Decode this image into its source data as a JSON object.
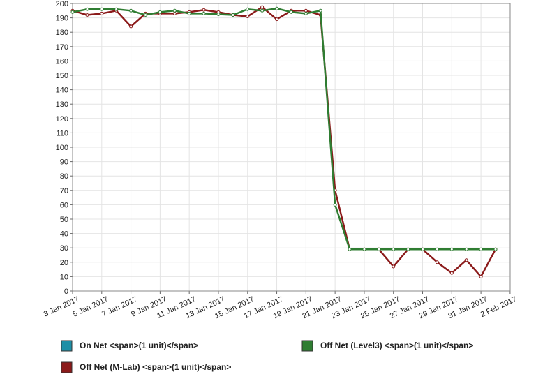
{
  "chart_data": {
    "type": "line",
    "x": [
      "2017-01-03",
      "2017-01-04",
      "2017-01-05",
      "2017-01-06",
      "2017-01-07",
      "2017-01-08",
      "2017-01-09",
      "2017-01-10",
      "2017-01-11",
      "2017-01-12",
      "2017-01-13",
      "2017-01-14",
      "2017-01-15",
      "2017-01-16",
      "2017-01-17",
      "2017-01-18",
      "2017-01-19",
      "2017-01-20",
      "2017-01-21",
      "2017-01-22",
      "2017-01-23",
      "2017-01-24",
      "2017-01-25",
      "2017-01-26",
      "2017-01-27",
      "2017-01-28",
      "2017-01-29",
      "2017-01-30",
      "2017-01-31",
      "2017-02-01"
    ],
    "series": [
      {
        "name": "On Net <span>(1 unit)</span>",
        "color": "#1f8fa6",
        "values": [
          null,
          null,
          null,
          null,
          null,
          null,
          null,
          null,
          null,
          null,
          null,
          null,
          null,
          null,
          null,
          null,
          null,
          null,
          null,
          null,
          null,
          null,
          null,
          null,
          null,
          null,
          null,
          null,
          null,
          null
        ]
      },
      {
        "name": "Off Net (Level3) <span>(1 unit)</span>",
        "color": "#2f7d32",
        "values": [
          194,
          196,
          196,
          196,
          195,
          192,
          194,
          195,
          193,
          193,
          192.5,
          192,
          196,
          195,
          196.5,
          194,
          193,
          195,
          60,
          29,
          29,
          29,
          29,
          29,
          29,
          29,
          29,
          29,
          29,
          29
        ]
      },
      {
        "name": "Off Net (M-Lab) <span>(1 unit)</span>",
        "color": "#8b1a1a",
        "values": [
          195,
          192,
          193,
          195,
          184,
          193,
          193,
          193,
          194,
          195.5,
          194,
          192,
          191,
          197.5,
          189,
          195,
          195,
          192,
          70,
          29,
          29,
          29,
          17,
          29,
          29,
          20,
          12.5,
          21.5,
          10,
          29
        ]
      }
    ],
    "xlim": [
      "2017-01-03",
      "2017-02-01"
    ],
    "xticks": [
      {
        "value": "2017-01-03",
        "label": "3 Jan 2017"
      },
      {
        "value": "2017-01-05",
        "label": "5 Jan 2017"
      },
      {
        "value": "2017-01-07",
        "label": "7 Jan 2017"
      },
      {
        "value": "2017-01-09",
        "label": "9 Jan 2017"
      },
      {
        "value": "2017-01-11",
        "label": "11 Jan 2017"
      },
      {
        "value": "2017-01-13",
        "label": "13 Jan 2017"
      },
      {
        "value": "2017-01-15",
        "label": "15 Jan 2017"
      },
      {
        "value": "2017-01-17",
        "label": "17 Jan 2017"
      },
      {
        "value": "2017-01-19",
        "label": "19 Jan 2017"
      },
      {
        "value": "2017-01-21",
        "label": "21 Jan 2017"
      },
      {
        "value": "2017-01-23",
        "label": "23 Jan 2017"
      },
      {
        "value": "2017-01-25",
        "label": "25 Jan 2017"
      },
      {
        "value": "2017-01-27",
        "label": "27 Jan 2017"
      },
      {
        "value": "2017-01-29",
        "label": "29 Jan 2017"
      },
      {
        "value": "2017-01-31",
        "label": "31 Jan 2017"
      },
      {
        "value": "2017-02-02",
        "label": "2 Feb 2017"
      }
    ],
    "ylim": [
      0,
      200
    ],
    "yticks": [
      0,
      10,
      20,
      30,
      40,
      50,
      60,
      70,
      80,
      90,
      100,
      110,
      120,
      130,
      140,
      150,
      160,
      170,
      180,
      190,
      200
    ],
    "grid": true
  }
}
